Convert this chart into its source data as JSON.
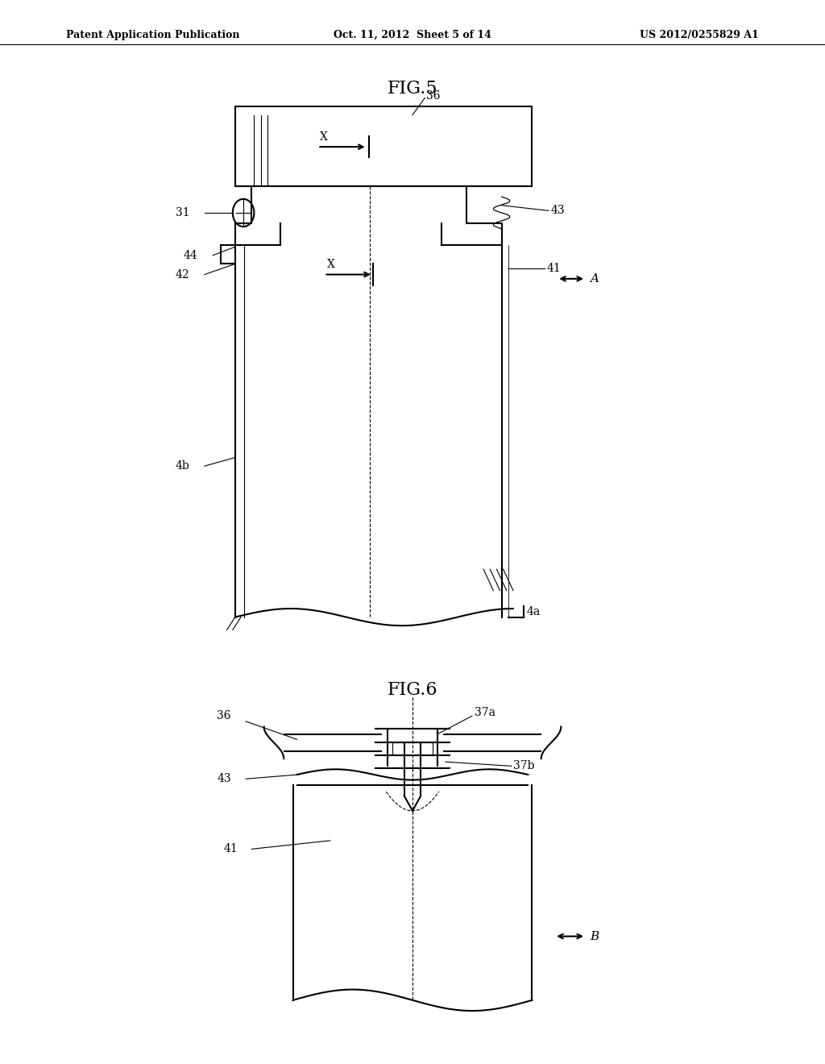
{
  "bg_color": "#ffffff",
  "line_color": "#000000",
  "header_left": "Patent Application Publication",
  "header_mid": "Oct. 11, 2012  Sheet 5 of 14",
  "header_right": "US 2012/0255829 A1",
  "fig5_title": "FIG.5",
  "fig6_title": "FIG.6"
}
